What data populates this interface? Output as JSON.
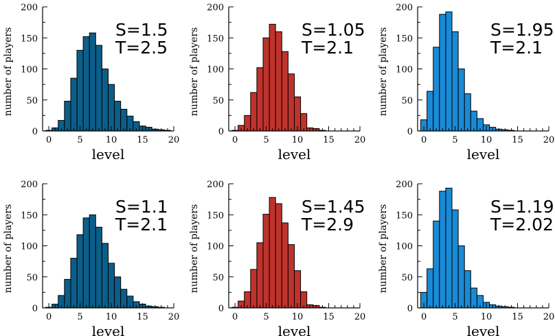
{
  "chart_data": [
    {
      "type": "bar",
      "color": "#0b5e8a",
      "xlabel": "level",
      "ylabel": "number of players",
      "annotation": [
        "S=1.5",
        "T=2.5"
      ],
      "xlim": [
        -1,
        20
      ],
      "ylim": [
        0,
        200
      ],
      "xticks": [
        0,
        5,
        10,
        15,
        20
      ],
      "yticks": [
        0,
        50,
        100,
        150,
        200
      ],
      "x": [
        0,
        1,
        2,
        3,
        4,
        5,
        6,
        7,
        8,
        9,
        10,
        11,
        12,
        13,
        14,
        15,
        16,
        17,
        18,
        19
      ],
      "values": [
        1,
        5,
        17,
        48,
        85,
        130,
        152,
        158,
        138,
        100,
        75,
        48,
        35,
        24,
        15,
        8,
        6,
        3,
        2,
        1
      ]
    },
    {
      "type": "bar",
      "color": "#c0322c",
      "xlabel": "level",
      "ylabel": "number of players",
      "annotation": [
        "S=1.05",
        "T=2.1"
      ],
      "xlim": [
        -1,
        20
      ],
      "ylim": [
        0,
        200
      ],
      "xticks": [
        0,
        5,
        10,
        15,
        20
      ],
      "yticks": [
        0,
        50,
        100,
        150,
        200
      ],
      "x": [
        0,
        1,
        2,
        3,
        4,
        5,
        6,
        7,
        8,
        9,
        10,
        11,
        12,
        13,
        14,
        15
      ],
      "values": [
        1,
        9,
        25,
        62,
        102,
        150,
        172,
        160,
        128,
        92,
        55,
        28,
        5,
        4,
        1,
        0
      ]
    },
    {
      "type": "bar",
      "color": "#1a8ad6",
      "xlabel": "level",
      "ylabel": "number of players",
      "annotation": [
        "S=1.95",
        "T=2.1"
      ],
      "xlim": [
        -1,
        20
      ],
      "ylim": [
        0,
        200
      ],
      "xticks": [
        0,
        5,
        10,
        15,
        20
      ],
      "yticks": [
        0,
        50,
        100,
        150,
        200
      ],
      "x": [
        0,
        1,
        2,
        3,
        4,
        5,
        6,
        7,
        8,
        9,
        10,
        11,
        12,
        13,
        14,
        15
      ],
      "values": [
        18,
        64,
        135,
        188,
        192,
        160,
        100,
        60,
        32,
        20,
        10,
        6,
        3,
        2,
        1,
        0
      ]
    },
    {
      "type": "bar",
      "color": "#0b5e8a",
      "xlabel": "level",
      "ylabel": "number of players",
      "annotation": [
        "S=1.1",
        "T=2.1"
      ],
      "xlim": [
        -1,
        20
      ],
      "ylim": [
        0,
        200
      ],
      "xticks": [
        0,
        5,
        10,
        15,
        20
      ],
      "yticks": [
        0,
        50,
        100,
        150,
        200
      ],
      "x": [
        0,
        1,
        2,
        3,
        4,
        5,
        6,
        7,
        8,
        9,
        10,
        11,
        12,
        13,
        14,
        15,
        16,
        17,
        18,
        19
      ],
      "values": [
        1,
        6,
        20,
        46,
        80,
        118,
        145,
        150,
        130,
        104,
        72,
        50,
        30,
        19,
        10,
        6,
        3,
        2,
        1,
        0
      ]
    },
    {
      "type": "bar",
      "color": "#c0322c",
      "xlabel": "level",
      "ylabel": "number of players",
      "annotation": [
        "S=1.45",
        "T=2.9"
      ],
      "xlim": [
        -1,
        20
      ],
      "ylim": [
        0,
        200
      ],
      "xticks": [
        0,
        5,
        10,
        15,
        20
      ],
      "yticks": [
        0,
        50,
        100,
        150,
        200
      ],
      "x": [
        0,
        1,
        2,
        3,
        4,
        5,
        6,
        7,
        8,
        9,
        10,
        11,
        12,
        13,
        14,
        15
      ],
      "values": [
        1,
        11,
        26,
        62,
        105,
        151,
        178,
        168,
        137,
        102,
        60,
        26,
        5,
        4,
        1,
        0
      ]
    },
    {
      "type": "bar",
      "color": "#1a8ad6",
      "xlabel": "level",
      "ylabel": "number of players",
      "annotation": [
        "S=1.19",
        "T=2.02"
      ],
      "xlim": [
        -1,
        20
      ],
      "ylim": [
        0,
        200
      ],
      "xticks": [
        0,
        5,
        10,
        15,
        20
      ],
      "yticks": [
        0,
        50,
        100,
        150,
        200
      ],
      "x": [
        0,
        1,
        2,
        3,
        4,
        5,
        6,
        7,
        8,
        9,
        10,
        11,
        12,
        13,
        14,
        15
      ],
      "values": [
        25,
        63,
        140,
        188,
        193,
        158,
        100,
        60,
        32,
        20,
        9,
        5,
        3,
        2,
        1,
        0
      ]
    }
  ]
}
